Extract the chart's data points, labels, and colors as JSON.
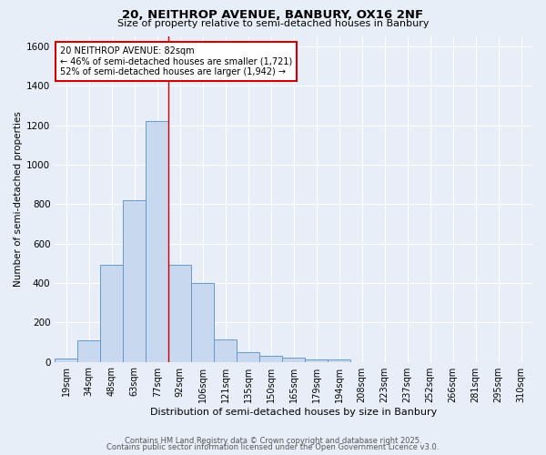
{
  "title1": "20, NEITHROP AVENUE, BANBURY, OX16 2NF",
  "title2": "Size of property relative to semi-detached houses in Banbury",
  "xlabel": "Distribution of semi-detached houses by size in Banbury",
  "ylabel": "Number of semi-detached properties",
  "bar_labels": [
    "19sqm",
    "34sqm",
    "48sqm",
    "63sqm",
    "77sqm",
    "92sqm",
    "106sqm",
    "121sqm",
    "135sqm",
    "150sqm",
    "165sqm",
    "179sqm",
    "194sqm",
    "208sqm",
    "223sqm",
    "237sqm",
    "252sqm",
    "266sqm",
    "281sqm",
    "295sqm",
    "310sqm"
  ],
  "bar_values": [
    15,
    110,
    490,
    820,
    1220,
    490,
    400,
    115,
    50,
    30,
    20,
    13,
    10,
    0,
    0,
    0,
    0,
    0,
    0,
    0,
    0
  ],
  "bar_color": "#c8d8ee",
  "bar_edge_color": "#6699cc",
  "background_color": "#e8eef8",
  "grid_color": "#ffffff",
  "red_line_x": 4.5,
  "property_size": "82sqm",
  "pct_smaller": 46,
  "pct_larger": 52,
  "n_smaller": 1721,
  "n_larger": 1942,
  "annotation_box_color": "#ffffff",
  "annotation_box_edge": "#cc0000",
  "ylim": [
    0,
    1650
  ],
  "yticks": [
    0,
    200,
    400,
    600,
    800,
    1000,
    1200,
    1400,
    1600
  ],
  "footer1": "Contains HM Land Registry data © Crown copyright and database right 2025.",
  "footer2": "Contains public sector information licensed under the Open Government Licence v3.0."
}
